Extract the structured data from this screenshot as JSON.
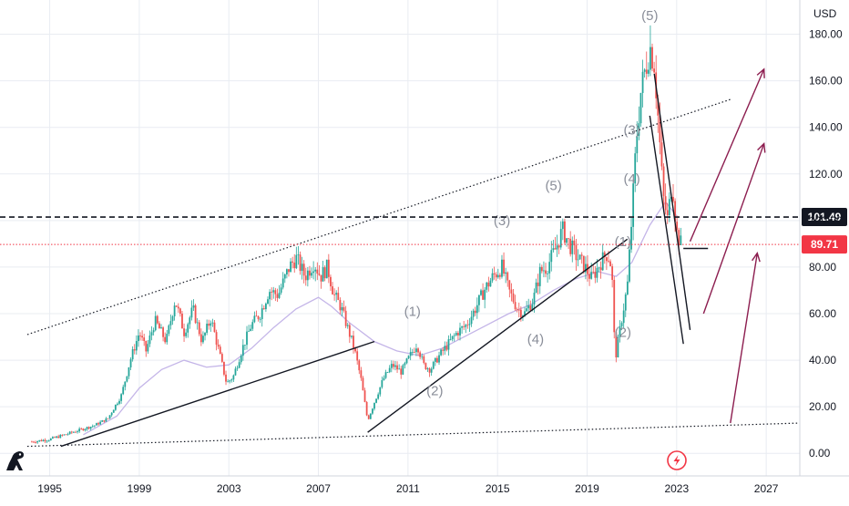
{
  "chart_data": {
    "type": "candlestick",
    "currency": "USD",
    "y_ticks": [
      "180.00",
      "160.00",
      "140.00",
      "120.00",
      "100.00",
      "80.00",
      "60.00",
      "40.00",
      "20.00",
      "0.00"
    ],
    "y_tick_values": [
      180,
      160,
      140,
      120,
      100,
      80,
      60,
      40,
      20,
      0
    ],
    "x_ticks": [
      "1995",
      "1999",
      "2003",
      "2007",
      "2011",
      "2015",
      "2019",
      "2023",
      "2027"
    ],
    "x_tick_years": [
      1995,
      1999,
      2003,
      2007,
      2011,
      2015,
      2019,
      2023,
      2027
    ],
    "ylim": [
      -5,
      190
    ],
    "xlim": [
      1994.0,
      2028.5
    ],
    "price_levels": [
      {
        "value": 101.49,
        "label": "101.49",
        "style": "dashed",
        "color": "#131722",
        "tag_bg": "#131722",
        "tag_fg": "#ffffff"
      },
      {
        "value": 89.71,
        "label": "89.71",
        "style": "dotted",
        "color": "#f23645",
        "tag_bg": "#f23645",
        "tag_fg": "#ffffff"
      }
    ],
    "price_path": [
      [
        1994.2,
        5
      ],
      [
        1995.0,
        6
      ],
      [
        1996.0,
        9
      ],
      [
        1997.0,
        12
      ],
      [
        1997.6,
        15
      ],
      [
        1998.2,
        25
      ],
      [
        1998.6,
        40
      ],
      [
        1999.0,
        52
      ],
      [
        1999.3,
        44
      ],
      [
        1999.7,
        57
      ],
      [
        2000.2,
        48
      ],
      [
        2000.6,
        66
      ],
      [
        2001.0,
        52
      ],
      [
        2001.4,
        62
      ],
      [
        2001.8,
        48
      ],
      [
        2002.2,
        58
      ],
      [
        2002.6,
        42
      ],
      [
        2002.9,
        30
      ],
      [
        2003.2,
        33
      ],
      [
        2003.6,
        45
      ],
      [
        2004.0,
        55
      ],
      [
        2004.4,
        60
      ],
      [
        2004.8,
        70
      ],
      [
        2005.2,
        68
      ],
      [
        2005.7,
        80
      ],
      [
        2006.0,
        84
      ],
      [
        2006.4,
        76
      ],
      [
        2006.8,
        82
      ],
      [
        2007.1,
        76
      ],
      [
        2007.4,
        80
      ],
      [
        2007.7,
        68
      ],
      [
        2008.0,
        63
      ],
      [
        2008.3,
        54
      ],
      [
        2008.6,
        45
      ],
      [
        2008.9,
        32
      ],
      [
        2009.2,
        14
      ],
      [
        2009.5,
        22
      ],
      [
        2009.9,
        32
      ],
      [
        2010.3,
        38
      ],
      [
        2010.7,
        35
      ],
      [
        2011.1,
        42
      ],
      [
        2011.4,
        47
      ],
      [
        2011.7,
        38
      ],
      [
        2012.0,
        36
      ],
      [
        2012.4,
        42
      ],
      [
        2012.8,
        47
      ],
      [
        2013.2,
        52
      ],
      [
        2013.6,
        55
      ],
      [
        2014.0,
        62
      ],
      [
        2014.4,
        70
      ],
      [
        2014.8,
        76
      ],
      [
        2015.2,
        80
      ],
      [
        2015.5,
        70
      ],
      [
        2015.9,
        62
      ],
      [
        2016.2,
        60
      ],
      [
        2016.6,
        66
      ],
      [
        2016.9,
        78
      ],
      [
        2017.2,
        80
      ],
      [
        2017.6,
        88
      ],
      [
        2017.9,
        96
      ],
      [
        2018.2,
        90
      ],
      [
        2018.5,
        85
      ],
      [
        2018.9,
        80
      ],
      [
        2019.2,
        75
      ],
      [
        2019.6,
        82
      ],
      [
        2019.9,
        86
      ],
      [
        2020.1,
        80
      ],
      [
        2020.25,
        40
      ],
      [
        2020.5,
        55
      ],
      [
        2020.8,
        72
      ],
      [
        2021.0,
        102
      ],
      [
        2021.2,
        135
      ],
      [
        2021.4,
        155
      ],
      [
        2021.6,
        165
      ],
      [
        2021.8,
        175
      ],
      [
        2022.0,
        168
      ],
      [
        2022.2,
        140
      ],
      [
        2022.4,
        110
      ],
      [
        2022.6,
        100
      ],
      [
        2022.8,
        118
      ],
      [
        2023.0,
        95
      ],
      [
        2023.2,
        89.71
      ]
    ],
    "moving_average": [
      [
        1996.5,
        8
      ],
      [
        1998,
        16
      ],
      [
        1999,
        28
      ],
      [
        2000,
        36
      ],
      [
        2001,
        40
      ],
      [
        2002,
        37
      ],
      [
        2003,
        38
      ],
      [
        2004,
        45
      ],
      [
        2005,
        54
      ],
      [
        2006,
        62
      ],
      [
        2007,
        67
      ],
      [
        2007.6,
        63
      ],
      [
        2008.4,
        56
      ],
      [
        2009.5,
        48
      ],
      [
        2010.5,
        44
      ],
      [
        2011.5,
        42
      ],
      [
        2012.5,
        45
      ],
      [
        2013.5,
        50
      ],
      [
        2014.5,
        55
      ],
      [
        2015.5,
        60
      ],
      [
        2016.5,
        64
      ],
      [
        2017.5,
        70
      ],
      [
        2018.5,
        75
      ],
      [
        2019.5,
        78
      ],
      [
        2020.3,
        76
      ],
      [
        2021.0,
        82
      ],
      [
        2021.8,
        98
      ],
      [
        2022.5,
        108
      ],
      [
        2023.0,
        102
      ]
    ],
    "trendlines": [
      {
        "style": "solid",
        "color": "#131722",
        "points": [
          [
            1995.5,
            3
          ],
          [
            2009.5,
            48
          ]
        ]
      },
      {
        "style": "solid",
        "color": "#131722",
        "points": [
          [
            2009.2,
            9
          ],
          [
            2020.8,
            92
          ]
        ]
      },
      {
        "style": "dotted",
        "color": "#131722",
        "points": [
          [
            1994.0,
            51
          ],
          [
            2025.4,
            152
          ]
        ]
      },
      {
        "style": "dotted",
        "color": "#131722",
        "points": [
          [
            1994.0,
            3
          ],
          [
            2028.5,
            13
          ]
        ]
      },
      {
        "style": "solid",
        "color": "#131722",
        "points": [
          [
            2022.0,
            163
          ],
          [
            2023.6,
            53
          ]
        ]
      },
      {
        "style": "solid",
        "color": "#131722",
        "points": [
          [
            2021.8,
            145
          ],
          [
            2023.3,
            47
          ]
        ]
      },
      {
        "style": "solid",
        "color": "#131722",
        "points": [
          [
            2023.3,
            88
          ],
          [
            2024.4,
            88
          ]
        ]
      }
    ],
    "arrows": [
      {
        "color": "#8c1d4f",
        "points": [
          [
            2023.6,
            91
          ],
          [
            2026.9,
            165
          ]
        ]
      },
      {
        "color": "#8c1d4f",
        "points": [
          [
            2024.2,
            60
          ],
          [
            2026.9,
            133
          ]
        ]
      },
      {
        "color": "#8c1d4f",
        "points": [
          [
            2025.4,
            13
          ],
          [
            2026.6,
            86
          ]
        ]
      }
    ],
    "wave_labels": [
      {
        "text": "(5)",
        "x": 2021.8,
        "y": 186
      },
      {
        "text": "(3)",
        "x": 2021.0,
        "y": 137
      },
      {
        "text": "(4)",
        "x": 2021.0,
        "y": 116
      },
      {
        "text": "(1)",
        "x": 2020.6,
        "y": 89
      },
      {
        "text": "(2)",
        "x": 2020.6,
        "y": 50
      },
      {
        "text": "(5)",
        "x": 2017.5,
        "y": 113
      },
      {
        "text": "(3)",
        "x": 2015.2,
        "y": 98
      },
      {
        "text": "(4)",
        "x": 2016.7,
        "y": 47
      },
      {
        "text": "(1)",
        "x": 2011.2,
        "y": 59
      },
      {
        "text": "(2)",
        "x": 2012.2,
        "y": 25
      }
    ],
    "colors": {
      "up": "#26a69a",
      "down": "#ef5350",
      "ma": "#c4b5e8",
      "grid": "#e9ecf2"
    }
  },
  "icons": {
    "logo": "tradingview-dino-icon",
    "event": "lightning-event-icon"
  }
}
